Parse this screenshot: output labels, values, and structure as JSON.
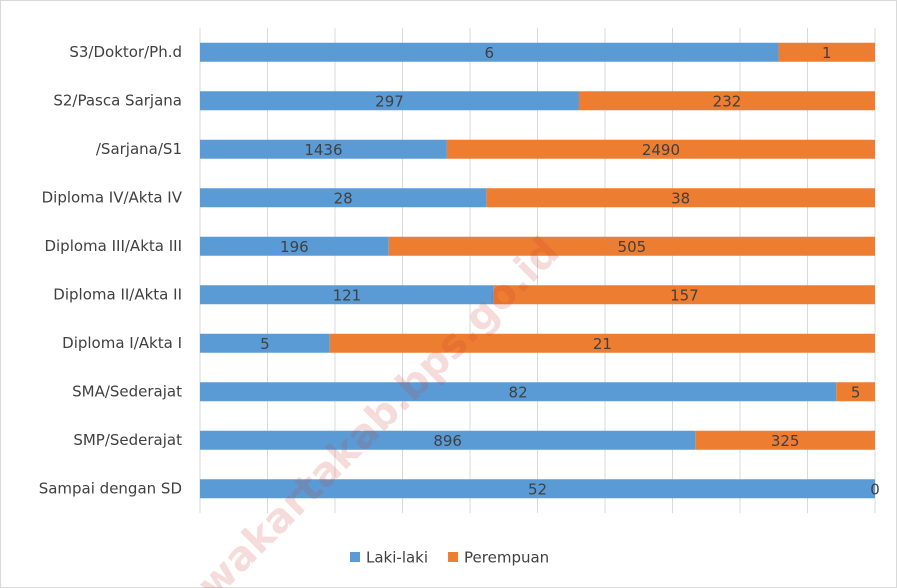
{
  "chart_data": {
    "type": "stacked_bar_100",
    "categories": [
      "S3/Doktor/Ph.d",
      "S2/Pasca Sarjana",
      "/Sarjana/S1",
      "Diploma IV/Akta IV",
      "Diploma III/Akta III",
      "Diploma II/Akta II",
      "Diploma I/Akta I",
      "SMA/Sederajat",
      "SMP/Sederajat",
      "Sampai dengan SD"
    ],
    "series": [
      {
        "name": "Laki-laki",
        "color": "#5b9bd5",
        "values": [
          6,
          297,
          1436,
          28,
          196,
          121,
          5,
          82,
          896,
          52
        ]
      },
      {
        "name": "Perempuan",
        "color": "#ed7d31",
        "values": [
          1,
          232,
          2490,
          38,
          505,
          157,
          21,
          5,
          325,
          0
        ]
      }
    ],
    "xlim": [
      0,
      100
    ],
    "xticks": [
      0,
      10,
      20,
      30,
      40,
      50,
      60,
      70,
      80,
      90,
      100
    ],
    "grid": true,
    "legend": "bottom",
    "watermark": "wakartakab.bps.go.id"
  }
}
